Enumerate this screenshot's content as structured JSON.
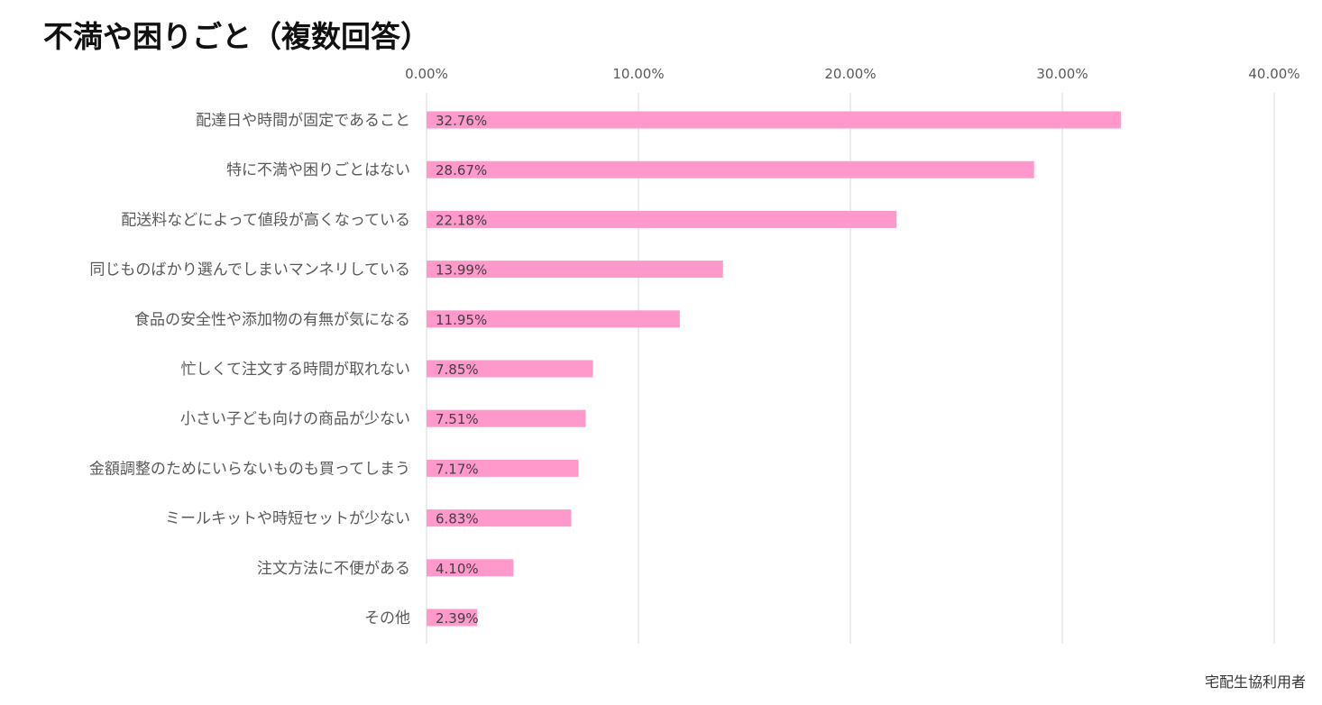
{
  "title": "不満や困りごと（複数回答）",
  "footnote": "宅配生協利用者",
  "colors": {
    "bar": "#FF99CC",
    "grid": "#D9D9D9",
    "tick_text": "#595959",
    "category_text": "#595959",
    "data_label": "#404040"
  },
  "chart_data": {
    "type": "bar",
    "orientation": "horizontal",
    "title": "不満や困りごと（複数回答）",
    "xlabel": "",
    "ylabel": "",
    "xlim": [
      0,
      40
    ],
    "x_ticks": [
      0,
      10,
      20,
      30,
      40
    ],
    "x_tick_labels": [
      "0.00%",
      "10.00%",
      "20.00%",
      "30.00%",
      "40.00%"
    ],
    "x_axis_position": "top",
    "grid": true,
    "legend": "none",
    "categories": [
      "配達日や時間が固定であること",
      "特に不満や困りごとはない",
      "配送料などによって値段が高くなっている",
      "同じものばかり選んでしまいマンネリしている",
      "食品の安全性や添加物の有無が気になる",
      "忙しくて注文する時間が取れない",
      "小さい子ども向けの商品が少ない",
      "金額調整のためにいらないものも買ってしまう",
      "ミールキットや時短セットが少ない",
      "注文方法に不便がある",
      "その他"
    ],
    "values": [
      32.76,
      28.67,
      22.18,
      13.99,
      11.95,
      7.85,
      7.51,
      7.17,
      6.83,
      4.1,
      2.39
    ],
    "data_labels": [
      "32.76%",
      "28.67%",
      "22.18%",
      "13.99%",
      "11.95%",
      "7.85%",
      "7.51%",
      "7.17%",
      "6.83%",
      "4.10%",
      "2.39%"
    ]
  }
}
